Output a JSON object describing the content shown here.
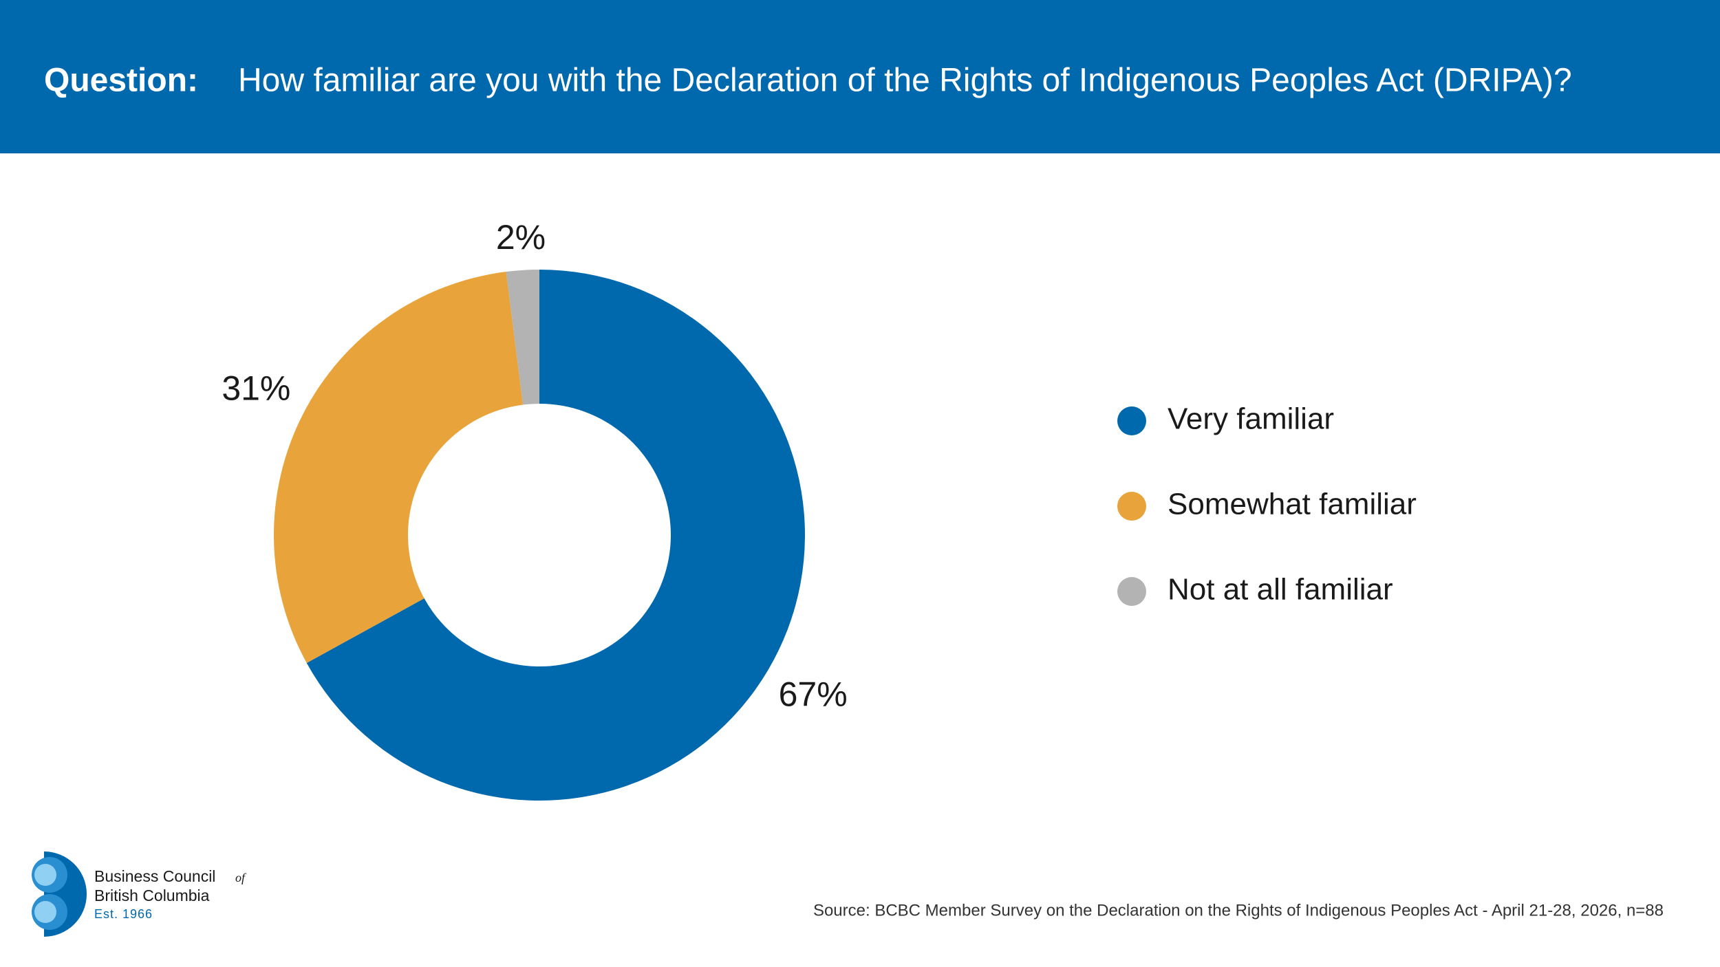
{
  "header": {
    "label": "Question:",
    "question": "How familiar are you with the Declaration of the Rights of Indigenous Peoples Act (DRIPA)?"
  },
  "chart_data": {
    "type": "donut",
    "categories": [
      "Very familiar",
      "Somewhat familiar",
      "Not at all familiar"
    ],
    "values": [
      67,
      31,
      2
    ],
    "value_labels": [
      "67%",
      "31%",
      "2%"
    ],
    "colors": [
      "#0068ad",
      "#e8a33b",
      "#b3b3b3"
    ],
    "legend": "right"
  },
  "footer": {
    "source": "Source: BCBC Member Survey on the Declaration on the Rights of Indigenous Peoples Act - April 21-28, 2026, n=88",
    "logo": {
      "line1": "Business Council",
      "of": "of",
      "line2": "British Columbia",
      "est": "Est. 1966"
    }
  }
}
